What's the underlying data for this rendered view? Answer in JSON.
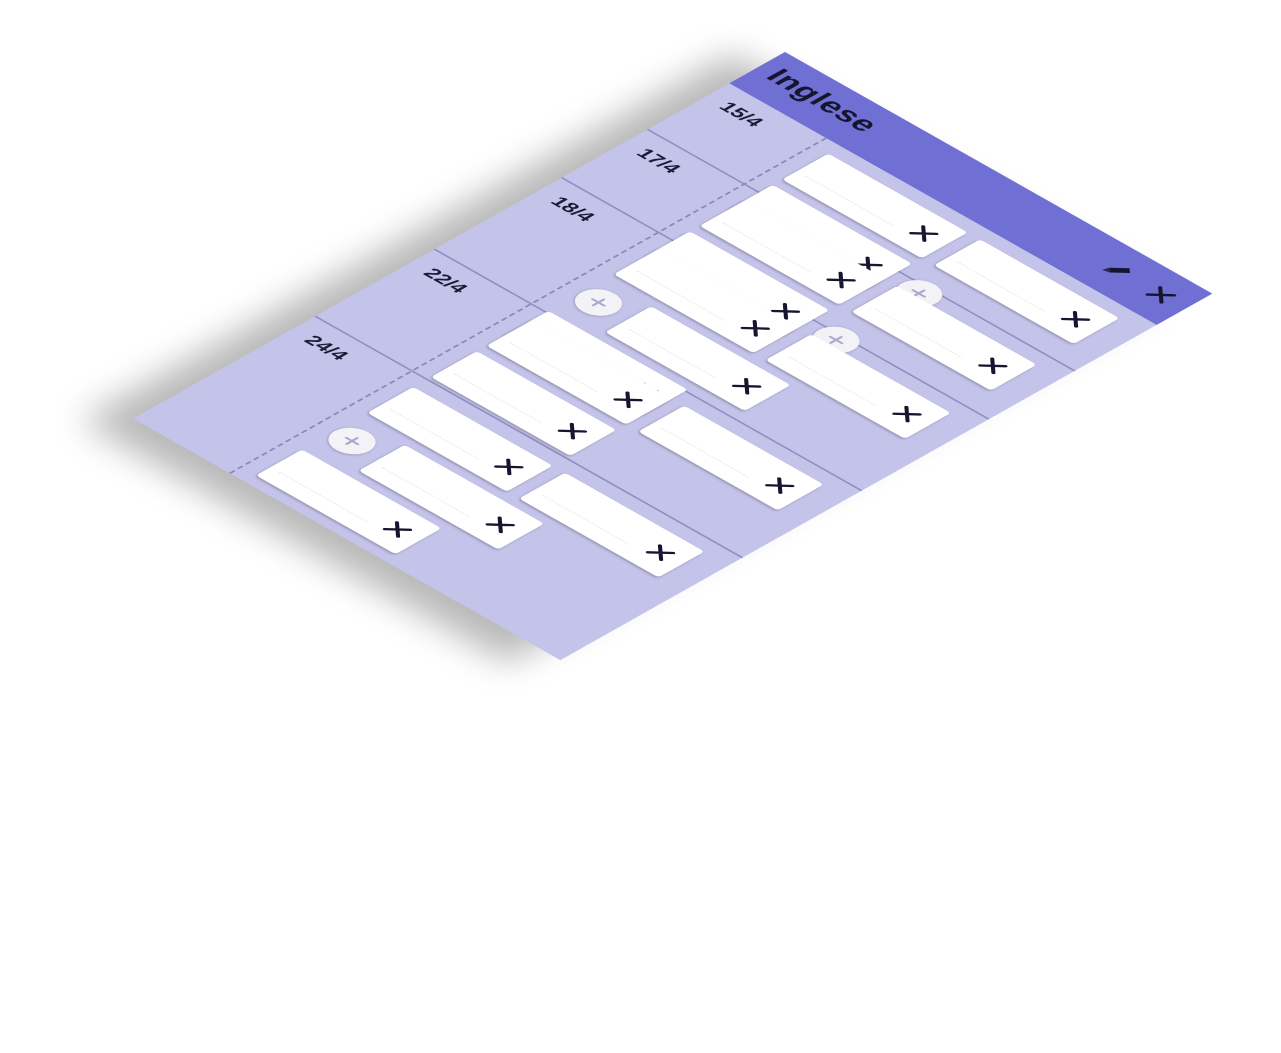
{
  "card": {
    "title": "Inglese",
    "edit_icon": "pencil-icon",
    "close_icon": "close-icon",
    "colors": {
      "header": "#6f6fd4",
      "body": "#c4c3ea",
      "field": "#ffffff",
      "text": "#151530"
    }
  },
  "days": [
    {
      "date": "15/4",
      "items": [
        "",
        "",
        ""
      ]
    },
    {
      "date": "17/4",
      "items": [
        "",
        "",
        ""
      ]
    },
    {
      "date": "18/4",
      "items": [
        "",
        "",
        "",
        ""
      ]
    },
    {
      "date": "22/4",
      "items": [
        "",
        "",
        ""
      ]
    },
    {
      "date": "24/4",
      "items": [
        "",
        "",
        "",
        ""
      ]
    }
  ],
  "icons": {
    "remove": "x-icon",
    "add": "plus-icon"
  }
}
